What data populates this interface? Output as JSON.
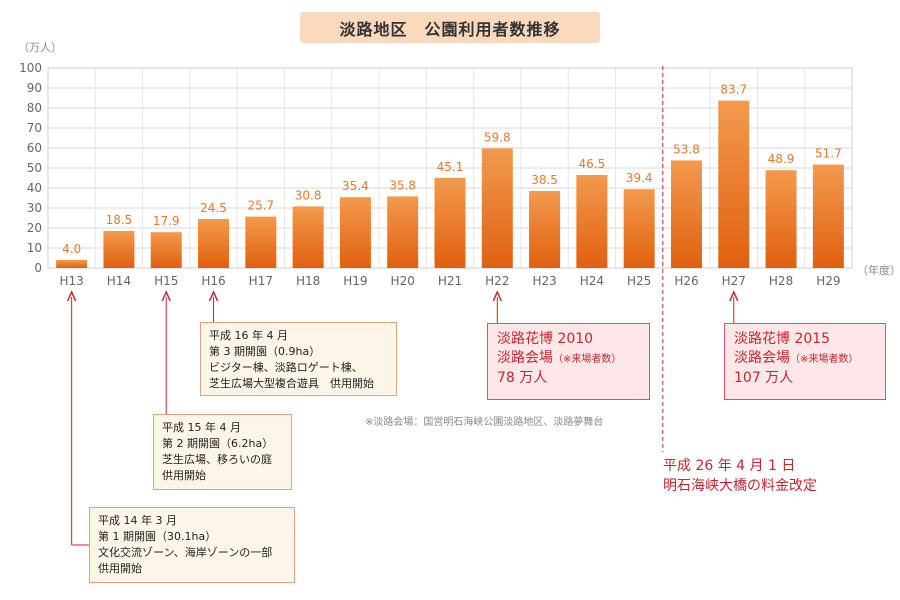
{
  "title": "淡路地区　公園利用者数推移",
  "chart_data": {
    "type": "bar",
    "title": "淡路地区　公園利用者数推移",
    "ylabel": "（万人）",
    "xlabel": "（年度）",
    "ylim": [
      0,
      100
    ],
    "yticks": [
      "0",
      "10",
      "20",
      "30",
      "40",
      "50",
      "60",
      "70",
      "80",
      "90",
      "100"
    ],
    "grid": true,
    "categories": [
      "H13",
      "H14",
      "H15",
      "H16",
      "H17",
      "H18",
      "H19",
      "H20",
      "H21",
      "H22",
      "H23",
      "H24",
      "H25",
      "H26",
      "H27",
      "H28",
      "H29"
    ],
    "values": [
      4.0,
      18.5,
      17.9,
      24.5,
      25.7,
      30.8,
      35.4,
      35.8,
      45.1,
      59.8,
      38.5,
      46.5,
      39.4,
      53.8,
      83.7,
      48.9,
      51.7
    ],
    "labels": [
      "4.0",
      "18.5",
      "17.9",
      "24.5",
      "25.7",
      "30.8",
      "35.4",
      "35.8",
      "45.1",
      "59.8",
      "38.5",
      "46.5",
      "39.4",
      "53.8",
      "83.7",
      "48.9",
      "51.7"
    ],
    "bar_color_top": "#f39a4e",
    "bar_color_bottom": "#e0600f",
    "label_color": "#e8792f"
  },
  "callouts": {
    "h16": {
      "lines": [
        "平成 16 年 4 月",
        "第 3 期開園（0.9ha）",
        "ビジター棟、淡路ロゲート棟、",
        "芝生広場大型複合遊具　供用開始"
      ]
    },
    "h15": {
      "lines": [
        "平成 15 年 4 月",
        "第 2 期開園（6.2ha）",
        "芝生広場、移ろいの庭",
        "供用開始"
      ]
    },
    "h14": {
      "lines": [
        "平成 14 年 3 月",
        "第 1 期開園（30.1ha）",
        "文化交流ゾーン、海岸ゾーンの一部",
        "供用開始"
      ]
    }
  },
  "expo2010": {
    "line1": "淡路花博 2010",
    "line2_main": "淡路会場",
    "line2_note": "（※来場者数）",
    "line3": "78 万人"
  },
  "expo2015": {
    "line1": "淡路花博 2015",
    "line2_main": "淡路会場",
    "line2_note": "（※来場者数）",
    "line3": "107 万人"
  },
  "note": "※淡路会場：国営明石海峡公園淡路地区、淡路夢舞台",
  "price_change": {
    "line1": "平成 26 年 4 月 1 日",
    "line2": "明石海峡大橋の料金改定"
  },
  "colors": {
    "accent_red": "#c8262f",
    "callout_border": "#e3a27b",
    "title_bg": "#fbd9bd"
  }
}
